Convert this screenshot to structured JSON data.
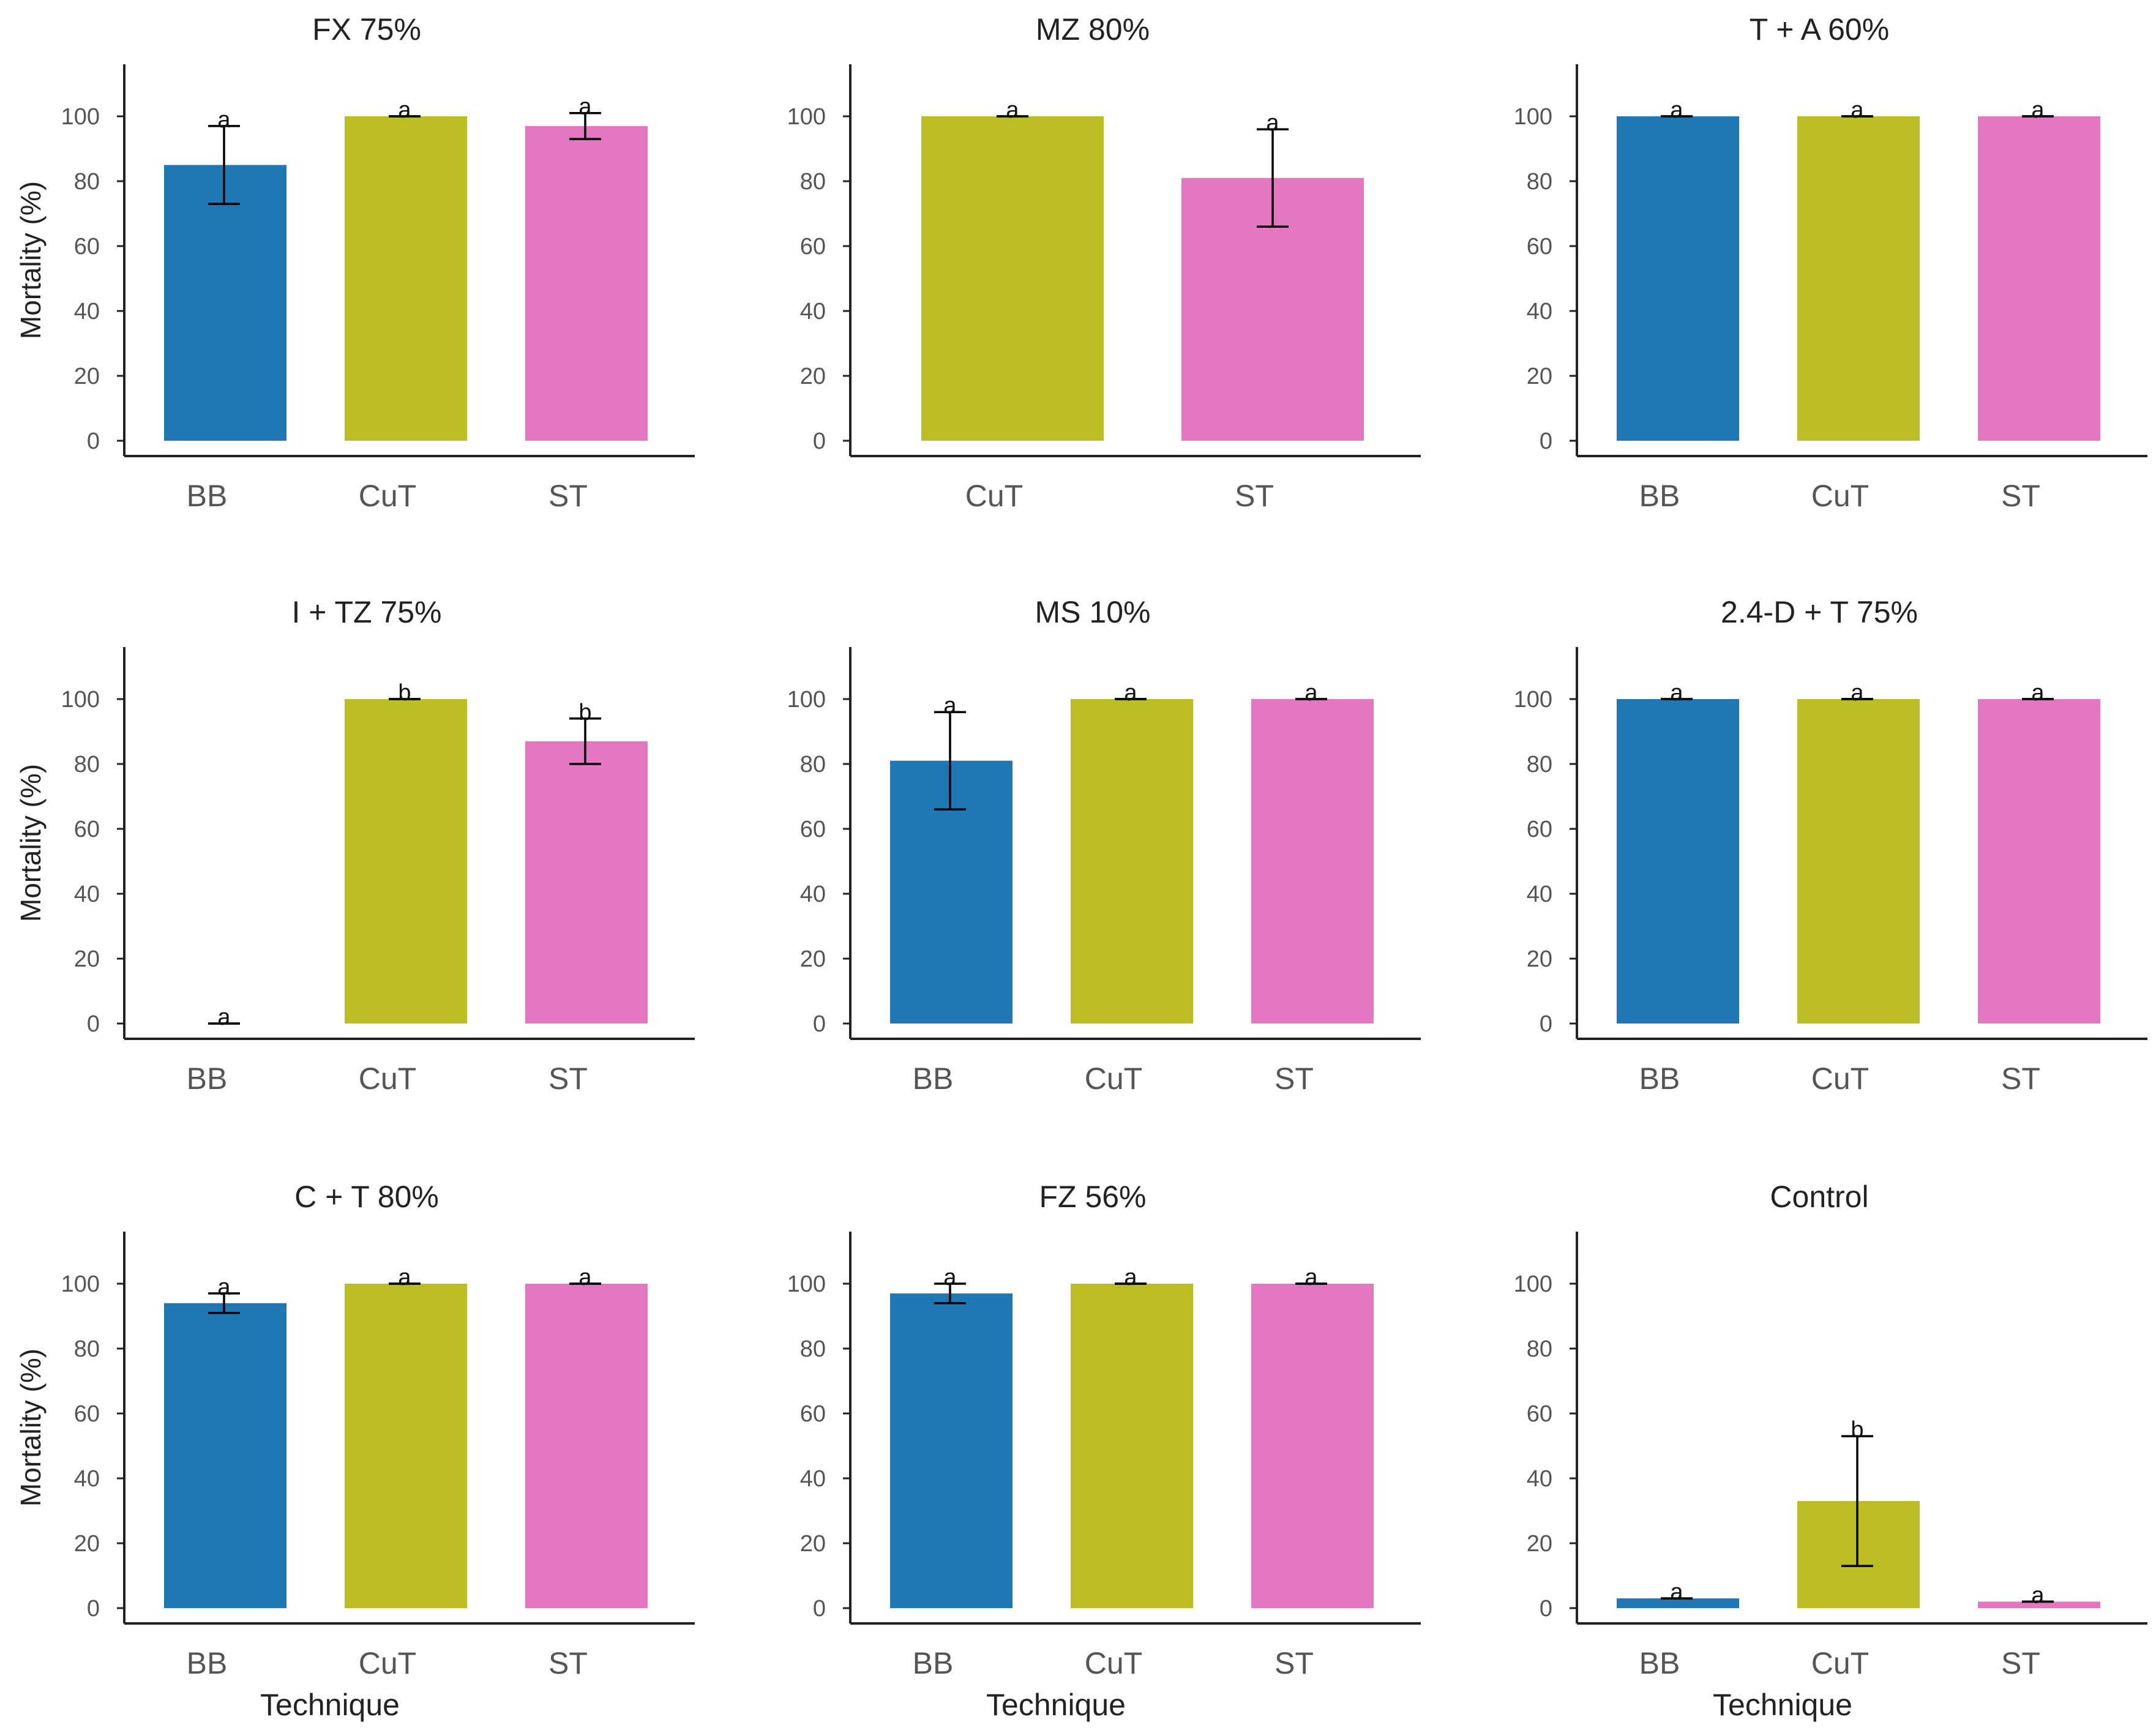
{
  "colors": {
    "BB": "#1f77b4",
    "CuT": "#bcbd22",
    "ST": "#e377c2"
  },
  "y_ticks": [
    "0",
    "20",
    "40",
    "60",
    "80",
    "100"
  ],
  "chart_data": [
    {
      "type": "bar",
      "title": "FX 75%",
      "ylabel": "Mortality (%)",
      "xlabel": "",
      "ylim": [
        0,
        115
      ],
      "categories": [
        "BB",
        "CuT",
        "ST"
      ],
      "values": [
        85,
        100,
        97
      ],
      "error": [
        12,
        0,
        4
      ],
      "letters": [
        "a",
        "a",
        "a"
      ]
    },
    {
      "type": "bar",
      "title": "MZ 80%",
      "ylabel": "",
      "xlabel": "",
      "ylim": [
        0,
        115
      ],
      "categories": [
        "CuT",
        "ST"
      ],
      "values": [
        100,
        81
      ],
      "error": [
        0,
        15
      ],
      "letters": [
        "a",
        "a"
      ]
    },
    {
      "type": "bar",
      "title": "T + A 60%",
      "ylabel": "",
      "xlabel": "",
      "ylim": [
        0,
        115
      ],
      "categories": [
        "BB",
        "CuT",
        "ST"
      ],
      "values": [
        100,
        100,
        100
      ],
      "error": [
        0,
        0,
        0
      ],
      "letters": [
        "a",
        "a",
        "a"
      ]
    },
    {
      "type": "bar",
      "title": "I + TZ 75%",
      "ylabel": "Mortality (%)",
      "xlabel": "",
      "ylim": [
        0,
        115
      ],
      "categories": [
        "BB",
        "CuT",
        "ST"
      ],
      "values": [
        0,
        100,
        87
      ],
      "error": [
        0,
        0,
        7
      ],
      "letters": [
        "a",
        "b",
        "b"
      ]
    },
    {
      "type": "bar",
      "title": "MS 10%",
      "ylabel": "",
      "xlabel": "",
      "ylim": [
        0,
        115
      ],
      "categories": [
        "BB",
        "CuT",
        "ST"
      ],
      "values": [
        81,
        100,
        100
      ],
      "error": [
        15,
        0,
        0
      ],
      "letters": [
        "a",
        "a",
        "a"
      ]
    },
    {
      "type": "bar",
      "title": "2.4-D + T 75%",
      "ylabel": "",
      "xlabel": "",
      "ylim": [
        0,
        115
      ],
      "categories": [
        "BB",
        "CuT",
        "ST"
      ],
      "values": [
        100,
        100,
        100
      ],
      "error": [
        0,
        0,
        0
      ],
      "letters": [
        "a",
        "a",
        "a"
      ]
    },
    {
      "type": "bar",
      "title": "C + T 80%",
      "ylabel": "Mortality (%)",
      "xlabel": "Technique",
      "ylim": [
        0,
        115
      ],
      "categories": [
        "BB",
        "CuT",
        "ST"
      ],
      "values": [
        94,
        100,
        100
      ],
      "error": [
        3,
        0,
        0
      ],
      "letters": [
        "a",
        "a",
        "a"
      ]
    },
    {
      "type": "bar",
      "title": "FZ 56%",
      "ylabel": "",
      "xlabel": "Technique",
      "ylim": [
        0,
        115
      ],
      "categories": [
        "BB",
        "CuT",
        "ST"
      ],
      "values": [
        97,
        100,
        100
      ],
      "error": [
        3,
        0,
        0
      ],
      "letters": [
        "a",
        "a",
        "a"
      ]
    },
    {
      "type": "bar",
      "title": "Control",
      "ylabel": "",
      "xlabel": "Technique",
      "ylim": [
        0,
        115
      ],
      "categories": [
        "BB",
        "CuT",
        "ST"
      ],
      "values": [
        3,
        33,
        2
      ],
      "error": [
        0,
        20,
        0
      ],
      "letters": [
        "a",
        "b",
        "a"
      ]
    }
  ]
}
